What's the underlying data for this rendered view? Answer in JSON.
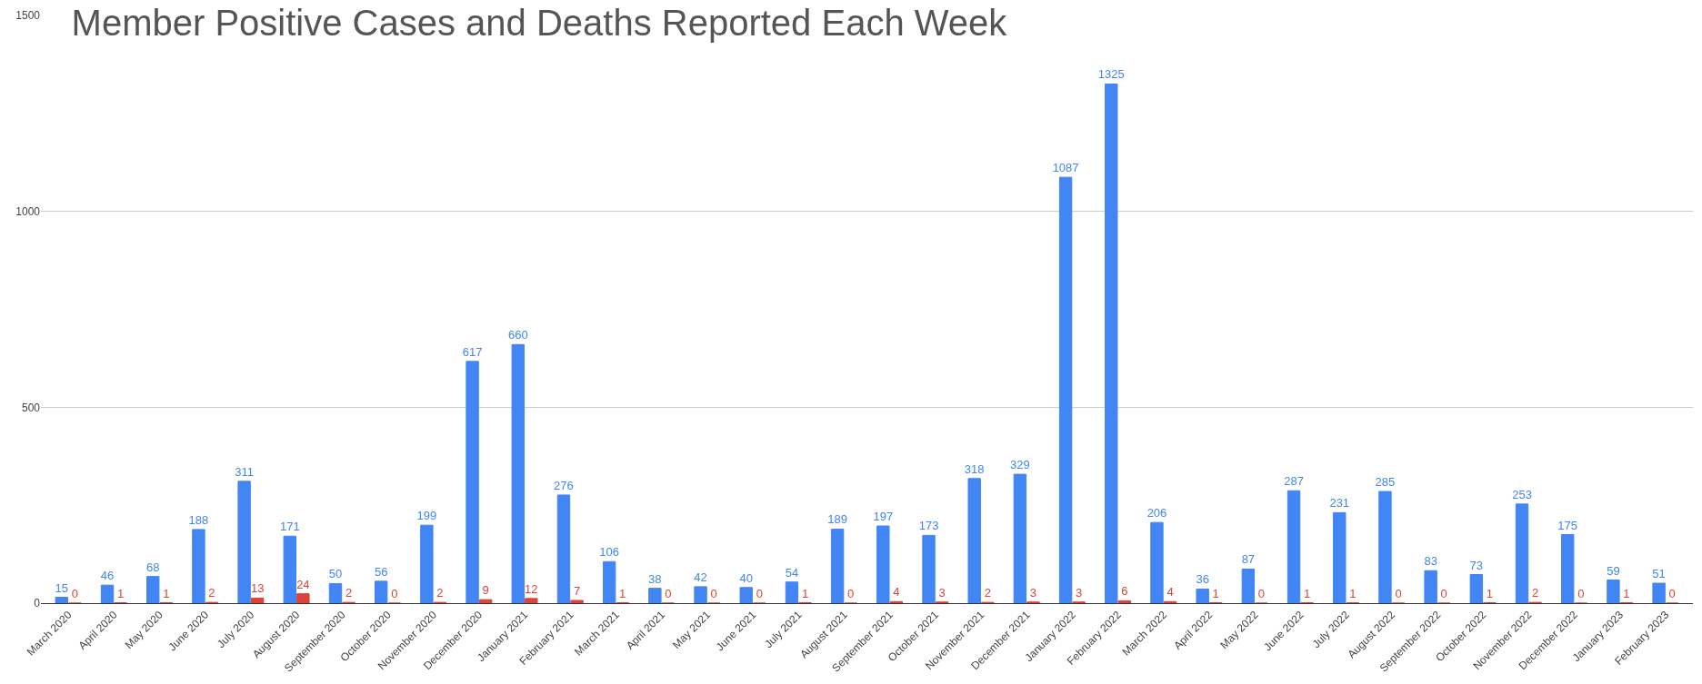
{
  "chart_data": {
    "type": "bar",
    "title": "Member Positive Cases and Deaths Reported Each Week",
    "categories": [
      "March 2020",
      "April 2020",
      "May 2020",
      "June 2020",
      "July 2020",
      "August 2020",
      "September 2020",
      "October 2020",
      "November 2020",
      "December 2020",
      "January 2021",
      "February 2021",
      "March 2021",
      "April 2021",
      "May 2021",
      "June 2021",
      "July 2021",
      "August 2021",
      "September 2021",
      "October 2021",
      "November 2021",
      "December 2021",
      "January 2022",
      "February 2022",
      "March 2022",
      "April 2022",
      "May 2022",
      "June 2022",
      "July 2022",
      "August 2022",
      "September 2022",
      "October 2022",
      "November 2022",
      "December 2022",
      "January 2023",
      "February 2023"
    ],
    "series": [
      {
        "color": "#4285f4",
        "values": [
          15,
          46,
          68,
          188,
          311,
          171,
          50,
          56,
          199,
          617,
          660,
          276,
          106,
          38,
          42,
          40,
          54,
          189,
          197,
          173,
          318,
          329,
          1087,
          1325,
          206,
          36,
          87,
          287,
          231,
          285,
          83,
          73,
          253,
          175,
          59,
          51
        ]
      },
      {
        "color": "#db4437",
        "values": [
          0,
          1,
          1,
          2,
          13,
          24,
          2,
          0,
          2,
          9,
          12,
          7,
          1,
          0,
          0,
          0,
          1,
          0,
          4,
          3,
          2,
          3,
          3,
          6,
          4,
          1,
          0,
          1,
          1,
          0,
          0,
          1,
          2,
          0,
          1,
          0
        ]
      }
    ],
    "ylim": [
      0,
      1500
    ],
    "yticks": [
      0,
      500,
      1000,
      1500
    ],
    "grid": "y",
    "data_labels": true
  }
}
